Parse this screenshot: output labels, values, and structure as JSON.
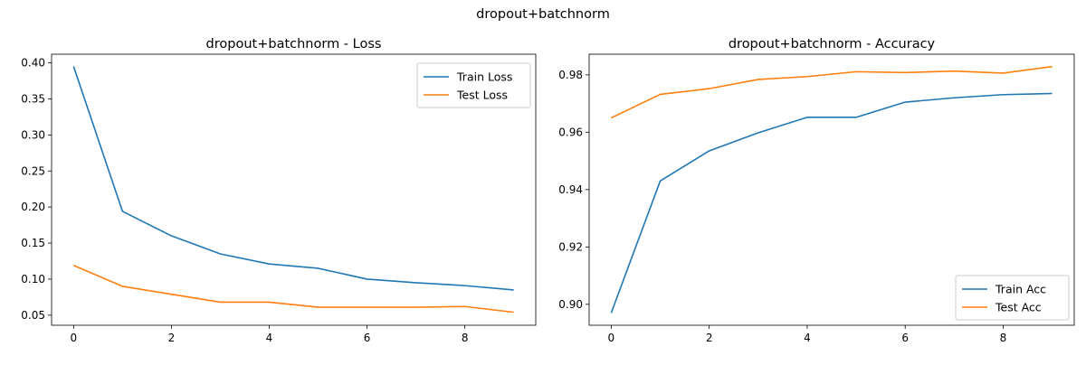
{
  "figure": {
    "suptitle": "dropout+batchnorm"
  },
  "chart_data": [
    {
      "type": "line",
      "title": "dropout+batchnorm - Loss",
      "xlabel": "",
      "ylabel": "",
      "x": [
        0,
        1,
        2,
        3,
        4,
        5,
        6,
        7,
        8,
        9
      ],
      "xlim": [
        -0.45,
        9.45
      ],
      "ylim": [
        0.036,
        0.412
      ],
      "xticks": [
        0,
        2,
        4,
        6,
        8
      ],
      "yticks": [
        0.05,
        0.1,
        0.15,
        0.2,
        0.25,
        0.3,
        0.35,
        0.4
      ],
      "ytick_labels": [
        "0.05",
        "0.10",
        "0.15",
        "0.20",
        "0.25",
        "0.30",
        "0.35",
        "0.40"
      ],
      "grid": false,
      "legend_position": "top-right",
      "series": [
        {
          "name": "Train Loss",
          "color": "#1f77b4",
          "values": [
            0.395,
            0.194,
            0.16,
            0.135,
            0.121,
            0.115,
            0.1,
            0.095,
            0.091,
            0.085
          ]
        },
        {
          "name": "Test Loss",
          "color": "#ff7f0e",
          "values": [
            0.119,
            0.09,
            0.079,
            0.068,
            0.068,
            0.061,
            0.061,
            0.061,
            0.062,
            0.054
          ]
        }
      ]
    },
    {
      "type": "line",
      "title": "dropout+batchnorm - Accuracy",
      "xlabel": "",
      "ylabel": "",
      "x": [
        0,
        1,
        2,
        3,
        4,
        5,
        6,
        7,
        8,
        9
      ],
      "xlim": [
        -0.45,
        9.45
      ],
      "ylim": [
        0.8927,
        0.9872
      ],
      "xticks": [
        0,
        2,
        4,
        6,
        8
      ],
      "yticks": [
        0.9,
        0.92,
        0.94,
        0.96,
        0.98
      ],
      "ytick_labels": [
        "0.90",
        "0.92",
        "0.94",
        "0.96",
        "0.98"
      ],
      "grid": false,
      "legend_position": "bottom-right",
      "series": [
        {
          "name": "Train Acc",
          "color": "#1f77b4",
          "values": [
            0.897,
            0.943,
            0.9535,
            0.9598,
            0.9652,
            0.9652,
            0.9705,
            0.972,
            0.9731,
            0.9735
          ]
        },
        {
          "name": "Test Acc",
          "color": "#ff7f0e",
          "values": [
            0.965,
            0.9732,
            0.9752,
            0.9784,
            0.9794,
            0.9811,
            0.9808,
            0.9813,
            0.9806,
            0.9829
          ]
        }
      ]
    }
  ]
}
